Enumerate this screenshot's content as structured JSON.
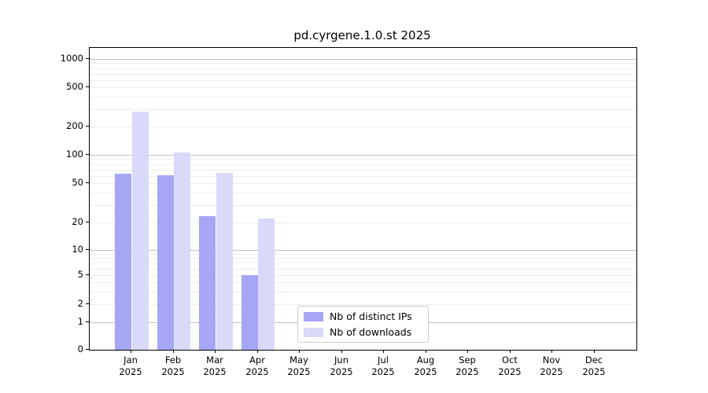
{
  "figure": {
    "title": "pd.cyrgene.1.0.st 2025"
  },
  "chart_data": {
    "type": "bar",
    "title": "pd.cyrgene.1.0.st 2025",
    "yscale": "symlog",
    "ylim": [
      0,
      1300
    ],
    "grid": "major and minor horizontal gridlines on",
    "categories": [
      "Jan",
      "Feb",
      "Mar",
      "Apr",
      "May",
      "Jun",
      "Jul",
      "Aug",
      "Sep",
      "Oct",
      "Nov",
      "Dec"
    ],
    "x_year_label": "2025",
    "yticks": [
      0,
      1,
      2,
      5,
      10,
      20,
      50,
      100,
      200,
      500,
      1000
    ],
    "series": [
      {
        "name": "Nb of distinct IPs",
        "color": "#a6a6f5",
        "values": [
          63,
          61,
          23,
          5,
          0,
          0,
          0,
          0,
          0,
          0,
          0,
          0
        ]
      },
      {
        "name": "Nb of downloads",
        "color": "#d9d9fa",
        "values": [
          285,
          105,
          64,
          22,
          0,
          0,
          0,
          0,
          0,
          0,
          0,
          0
        ]
      }
    ],
    "legend": {
      "position": "lower center",
      "entries": [
        "Nb of distinct IPs",
        "Nb of downloads"
      ]
    }
  }
}
